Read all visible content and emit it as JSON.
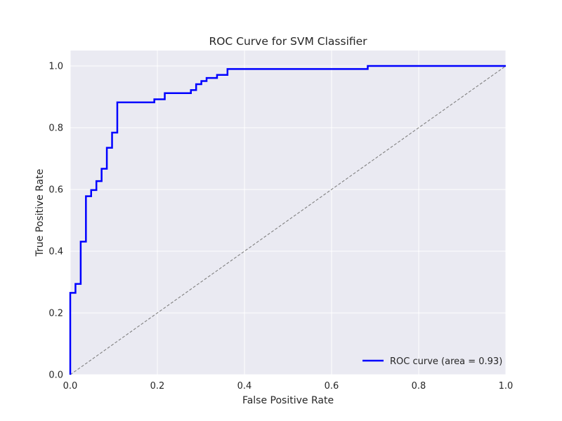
{
  "chart_data": {
    "type": "line",
    "title": "ROC Curve for SVM Classifier",
    "xlabel": "False Positive Rate",
    "ylabel": "True Positive Rate",
    "xlim": [
      0.0,
      1.0
    ],
    "ylim": [
      0.0,
      1.05
    ],
    "xticks": [
      "0.0",
      "0.2",
      "0.4",
      "0.6",
      "0.8",
      "1.0"
    ],
    "yticks": [
      "0.0",
      "0.2",
      "0.4",
      "0.6",
      "0.8",
      "1.0"
    ],
    "grid": true,
    "legend_position": "lower-right",
    "plot_background": "#eaeaf2",
    "grid_color": "#ffffff",
    "series": [
      {
        "name": "ROC curve (area = 0.93)",
        "color": "#0000ff",
        "style": "solid",
        "x": [
          0.0,
          0.0,
          0.0,
          0.012,
          0.012,
          0.024,
          0.024,
          0.036,
          0.036,
          0.048,
          0.048,
          0.06,
          0.06,
          0.072,
          0.072,
          0.084,
          0.084,
          0.096,
          0.096,
          0.108,
          0.108,
          0.193,
          0.193,
          0.217,
          0.217,
          0.277,
          0.277,
          0.289,
          0.289,
          0.301,
          0.301,
          0.313,
          0.313,
          0.337,
          0.337,
          0.361,
          0.361,
          0.683,
          0.683,
          1.0
        ],
        "y": [
          0.0,
          0.265,
          0.265,
          0.265,
          0.294,
          0.294,
          0.431,
          0.431,
          0.578,
          0.578,
          0.598,
          0.598,
          0.627,
          0.627,
          0.667,
          0.667,
          0.735,
          0.735,
          0.784,
          0.784,
          0.882,
          0.882,
          0.892,
          0.892,
          0.912,
          0.912,
          0.922,
          0.922,
          0.941,
          0.941,
          0.951,
          0.951,
          0.961,
          0.961,
          0.971,
          0.971,
          0.99,
          0.99,
          1.0,
          1.0
        ]
      },
      {
        "name": "",
        "color": "#808080",
        "style": "dashed",
        "x": [
          0.0,
          1.0
        ],
        "y": [
          0.0,
          1.0
        ]
      }
    ]
  }
}
